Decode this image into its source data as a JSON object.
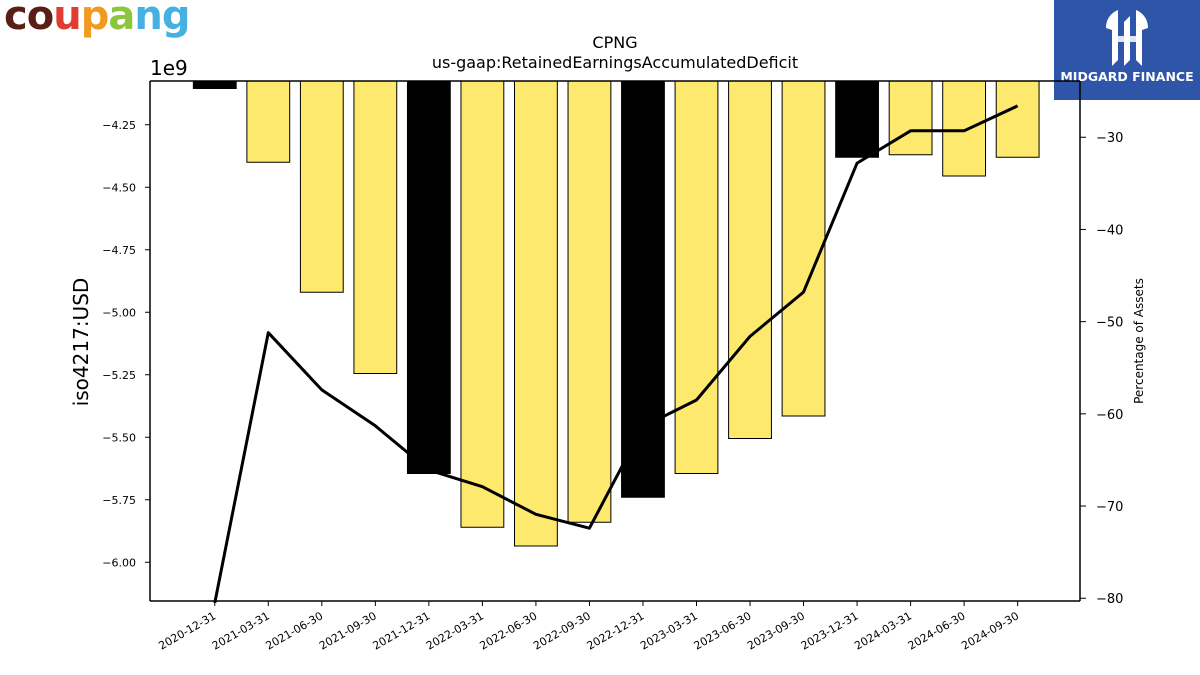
{
  "brand": {
    "letters": [
      "c",
      "o",
      "u",
      "p",
      "a",
      "n",
      "g"
    ],
    "letter_colors": [
      "#5a1e16",
      "#5a1e16",
      "#e03c31",
      "#f29a1f",
      "#8cc63f",
      "#45b1e3",
      "#45b1e3"
    ]
  },
  "watermark": {
    "name": "MIDGARD FINANCE",
    "icon": "midgard-logo-icon",
    "background": "#2f55a8"
  },
  "chart_data": {
    "type": "bar",
    "title": "CPNG",
    "subtitle": "us-gaap:RetainedEarningsAccumulatedDeficit",
    "ylabel": "iso4217:USD",
    "ylabel_right": "Percentage of Assets",
    "y_offset_label": "1e9",
    "y_scale": 1000000000,
    "ylim": [
      -6.155,
      -4.075
    ],
    "y2lim": [
      -80.3,
      -23.9
    ],
    "yticks": [
      -4.25,
      -4.5,
      -4.75,
      -5.0,
      -5.25,
      -5.5,
      -5.75,
      -6.0
    ],
    "ytick_labels": [
      "−4.25",
      "−4.50",
      "−4.75",
      "−5.00",
      "−5.25",
      "−5.50",
      "−5.75",
      "−6.00"
    ],
    "y2ticks": [
      -30,
      -40,
      -50,
      -60,
      -70,
      -80
    ],
    "y2tick_labels": [
      "−30",
      "−40",
      "−50",
      "−60",
      "−70",
      "−80"
    ],
    "categories": [
      "2020-12-31",
      "2021-03-31",
      "2021-06-30",
      "2021-09-30",
      "2021-12-31",
      "2022-03-31",
      "2022-06-30",
      "2022-09-30",
      "2022-12-31",
      "2023-03-31",
      "2023-06-30",
      "2023-09-30",
      "2023-12-31",
      "2024-03-31",
      "2024-06-30",
      "2024-09-30"
    ],
    "series": [
      {
        "values": [
          -4.105,
          -4.4,
          -4.92,
          -5.245,
          -5.645,
          -5.86,
          -5.935,
          -5.84,
          -5.74,
          -5.645,
          -5.505,
          -5.415,
          -4.38,
          -4.37,
          -4.455,
          -4.38
        ],
        "colors": [
          "#000000",
          "#fde96e",
          "#fde96e",
          "#fde96e",
          "#000000",
          "#fde96e",
          "#fde96e",
          "#fde96e",
          "#000000",
          "#fde96e",
          "#fde96e",
          "#fde96e",
          "#000000",
          "#fde96e",
          "#fde96e",
          "#fde96e"
        ]
      },
      {
        "axis": "right",
        "type": "line",
        "values": [
          -80.5,
          -51.2,
          -57.4,
          -61.3,
          -66.1,
          -67.9,
          -70.9,
          -72.4,
          -61.4,
          -58.5,
          -51.6,
          -46.8,
          -32.8,
          -29.3,
          -29.3,
          -26.6
        ],
        "color": "#000000"
      }
    ],
    "grid": false,
    "legend": "none"
  }
}
